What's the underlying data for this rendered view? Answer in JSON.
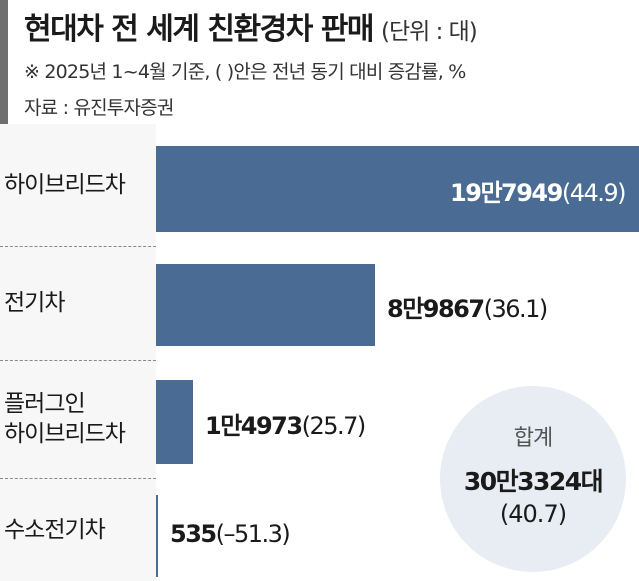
{
  "header": {
    "title": "현대차 전 세계 친환경차 판매",
    "unit": "(단위 : 대)",
    "note": "※ 2025년 1~4월 기준, ( )안은 전년 동기 대비 증감률, %",
    "source": "자료 : 유진투자증권"
  },
  "chart_data": {
    "type": "bar",
    "orientation": "horizontal",
    "categories": [
      "하이브리드차",
      "전기차",
      "플러그인 하이브리드차",
      "수소전기차"
    ],
    "values": [
      197949,
      89867,
      14973,
      535
    ],
    "change_pct": [
      44.9,
      36.1,
      25.7,
      -51.3
    ],
    "value_labels": [
      {
        "main": "19만7949",
        "change": "(44.9)"
      },
      {
        "main": "8만9867",
        "change": "(36.1)"
      },
      {
        "main": "1만4973",
        "change": "(25.7)"
      },
      {
        "main": "535",
        "change": "(–51.3)"
      }
    ],
    "category_lines": [
      [
        "하이브리드차"
      ],
      [
        "전기차"
      ],
      [
        "플러그인",
        "하이브리드차"
      ],
      [
        "수소전기차"
      ]
    ],
    "xlim": [
      0,
      197949
    ],
    "bar_color": "#4a6b93",
    "total": {
      "title": "합계",
      "value": "30만3324대",
      "change": "(40.7)"
    }
  }
}
